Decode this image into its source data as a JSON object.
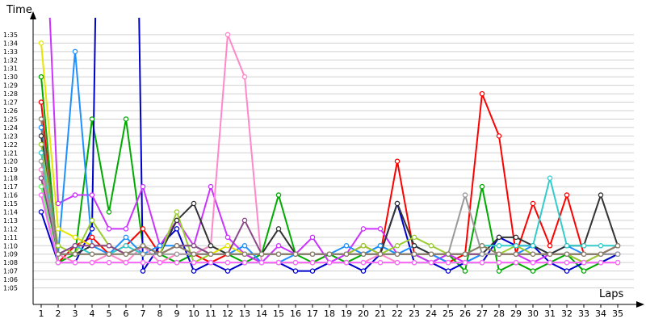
{
  "chart_data": {
    "type": "line",
    "ylabel": "Time",
    "xlabel": "Laps",
    "x": [
      1,
      2,
      3,
      4,
      5,
      6,
      7,
      8,
      9,
      10,
      11,
      12,
      13,
      14,
      15,
      16,
      17,
      18,
      19,
      20,
      21,
      22,
      23,
      24,
      25,
      26,
      27,
      28,
      29,
      30,
      31,
      32,
      33,
      34,
      35
    ],
    "y_tick_labels": [
      "1:05",
      "1:06",
      "1:07",
      "1:08",
      "1:09",
      "1:10",
      "1:11",
      "1:12",
      "1:13",
      "1:14",
      "1:15",
      "1:16",
      "1:17",
      "1:18",
      "1:19",
      "1:20",
      "1:21",
      "1:22",
      "1:23",
      "1:24",
      "1:25",
      "1:26",
      "1:27",
      "1:28",
      "1:29",
      "1:30",
      "1:31",
      "1:32",
      "1:33",
      "1:34",
      "1:35"
    ],
    "ylim_seconds": [
      64,
      97
    ],
    "y_unit": "m:ss",
    "grid": "horizontal",
    "series": [
      {
        "color": "#ff0000",
        "values": [
          87,
          68,
          70,
          71,
          69,
          70,
          72,
          69,
          70,
          69,
          68,
          69,
          69,
          68,
          68,
          68,
          68,
          69,
          69,
          70,
          69,
          80,
          69,
          69,
          68,
          69,
          88,
          83,
          69,
          75,
          70,
          76,
          69,
          69,
          69
        ]
      },
      {
        "color": "#00aa00",
        "values": [
          90,
          68,
          69,
          85,
          74,
          85,
          70,
          69,
          68,
          69,
          70,
          69,
          68,
          69,
          76,
          69,
          68,
          69,
          68,
          69,
          70,
          69,
          69,
          68,
          69,
          67,
          77,
          67,
          68,
          67,
          68,
          69,
          67,
          68,
          69
        ]
      },
      {
        "color": "#0000cc",
        "values": [
          74,
          68,
          68,
          72,
          200,
          200,
          67,
          70,
          72,
          67,
          68,
          67,
          68,
          68,
          68,
          67,
          67,
          68,
          68,
          67,
          69,
          75,
          68,
          68,
          67,
          68,
          68,
          71,
          70,
          70,
          68,
          67,
          68,
          68,
          69
        ]
      },
      {
        "color": "#cc33ff",
        "values": [
          120,
          75,
          76,
          76,
          72,
          72,
          77,
          70,
          73,
          70,
          77,
          71,
          69,
          68,
          70,
          69,
          71,
          68,
          69,
          72,
          72,
          69,
          69,
          68,
          69,
          68,
          69,
          69,
          69,
          68,
          69,
          69,
          68,
          69,
          70
        ]
      },
      {
        "color": "#1e90ff",
        "values": [
          84,
          69,
          93,
          70,
          69,
          71,
          69,
          70,
          70,
          69,
          69,
          69,
          70,
          68,
          68,
          69,
          69,
          69,
          70,
          69,
          70,
          69,
          70,
          69,
          68,
          68,
          69,
          69,
          69,
          70,
          69,
          70,
          69,
          69,
          69
        ]
      },
      {
        "color": "#ff88cc",
        "values": [
          79,
          69,
          68,
          68,
          69,
          68,
          70,
          68,
          69,
          69,
          70,
          95,
          90,
          68,
          68,
          68,
          68,
          68,
          68,
          68,
          69,
          68,
          68,
          68,
          68,
          68,
          68,
          68,
          68,
          68,
          68,
          68,
          68,
          68,
          68
        ]
      },
      {
        "color": "#333333",
        "values": [
          83,
          69,
          69,
          70,
          70,
          69,
          70,
          69,
          73,
          75,
          70,
          69,
          69,
          69,
          72,
          69,
          69,
          69,
          69,
          69,
          69,
          75,
          70,
          69,
          69,
          69,
          69,
          71,
          71,
          70,
          69,
          70,
          70,
          76,
          70
        ]
      },
      {
        "color": "#e6e600",
        "values": [
          94,
          72,
          71,
          70,
          70,
          69,
          69,
          69,
          70,
          70,
          69,
          70,
          69,
          69,
          69,
          69,
          69,
          69,
          69,
          69,
          69,
          69,
          69,
          69,
          69,
          69,
          70,
          69,
          69,
          69,
          69,
          69,
          69,
          69,
          70
        ]
      },
      {
        "color": "#9acd32",
        "values": [
          82,
          70,
          69,
          73,
          70,
          69,
          69,
          69,
          74,
          68,
          69,
          69,
          69,
          69,
          69,
          69,
          69,
          69,
          69,
          70,
          69,
          70,
          71,
          70,
          69,
          69,
          69,
          69,
          70,
          69,
          69,
          69,
          68,
          69,
          70
        ]
      },
      {
        "color": "#33cccc",
        "values": [
          81,
          69,
          70,
          69,
          69,
          70,
          69,
          69,
          70,
          70,
          69,
          69,
          69,
          69,
          69,
          69,
          69,
          69,
          69,
          69,
          69,
          69,
          69,
          69,
          69,
          69,
          70,
          70,
          70,
          70,
          78,
          70,
          70,
          70,
          70
        ]
      },
      {
        "color": "#8b4789",
        "values": [
          78,
          69,
          70,
          70,
          70,
          69,
          69,
          69,
          70,
          70,
          69,
          69,
          73,
          69,
          69,
          69,
          69,
          69,
          69,
          69,
          69,
          69,
          69,
          69,
          69,
          69,
          69,
          69,
          69,
          69,
          69,
          69,
          69,
          69,
          70
        ]
      },
      {
        "color": "#999999",
        "values": [
          80,
          69,
          69,
          69,
          69,
          69,
          69,
          69,
          69,
          69,
          69,
          69,
          69,
          69,
          69,
          69,
          69,
          69,
          69,
          69,
          69,
          69,
          69,
          69,
          69,
          76,
          69,
          69,
          69,
          69,
          69,
          69,
          69,
          69,
          69
        ]
      },
      {
        "color": "#8b7d6b",
        "values": [
          85,
          69,
          69,
          69,
          69,
          69,
          70,
          69,
          70,
          69,
          69,
          69,
          69,
          69,
          69,
          69,
          69,
          69,
          69,
          69,
          69,
          69,
          69,
          69,
          69,
          69,
          70,
          69,
          69,
          69,
          69,
          69,
          69,
          69,
          70
        ]
      },
      {
        "color": "#66ff66",
        "values": [
          77,
          68,
          68,
          68,
          68,
          68,
          68,
          68,
          68,
          68,
          68,
          68,
          68,
          68,
          68,
          68,
          68,
          68,
          68,
          68,
          68,
          68,
          68,
          68,
          68,
          68,
          68,
          68,
          68,
          68,
          68,
          68,
          68,
          68,
          68
        ]
      },
      {
        "color": "#ff66ff",
        "values": [
          76,
          68,
          68,
          68,
          68,
          68,
          68,
          68,
          68,
          68,
          68,
          68,
          68,
          68,
          68,
          68,
          68,
          68,
          68,
          68,
          68,
          68,
          68,
          68,
          68,
          68,
          68,
          68,
          68,
          68,
          68,
          68,
          68,
          68,
          68
        ]
      }
    ]
  }
}
